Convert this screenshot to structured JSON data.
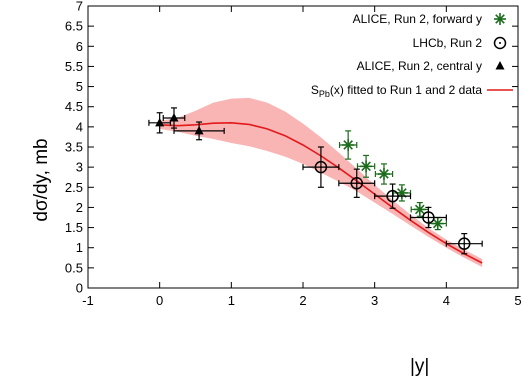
{
  "chart_data": {
    "type": "scatter",
    "xlabel": "|y|",
    "ylabel": "dσ/dy, mb",
    "xlim": [
      -1,
      5
    ],
    "ylim": [
      0,
      7
    ],
    "xticks": [
      "-1",
      "0",
      "1",
      "2",
      "3",
      "4",
      "5"
    ],
    "yticks": [
      "0",
      "0.5",
      "1",
      "1.5",
      "2",
      "2.5",
      "3",
      "3.5",
      "4",
      "4.5",
      "5",
      "5.5",
      "6",
      "6.5",
      "7"
    ],
    "legend_position": "top-right",
    "series": [
      {
        "name": "ALICE, Run 2, forward y",
        "marker": "asterisk",
        "color": "#1a6b1a",
        "points": [
          {
            "x": 2.63,
            "y": 3.55,
            "xerr": 0.12,
            "yerr": 0.35
          },
          {
            "x": 2.88,
            "y": 3.02,
            "xerr": 0.12,
            "yerr": 0.27
          },
          {
            "x": 3.13,
            "y": 2.83,
            "xerr": 0.12,
            "yerr": 0.25
          },
          {
            "x": 3.38,
            "y": 2.36,
            "xerr": 0.12,
            "yerr": 0.2
          },
          {
            "x": 3.63,
            "y": 1.95,
            "xerr": 0.12,
            "yerr": 0.17
          },
          {
            "x": 3.88,
            "y": 1.6,
            "xerr": 0.12,
            "yerr": 0.15
          }
        ]
      },
      {
        "name": "LHCb, Run 2",
        "marker": "open-circle",
        "color": "#000000",
        "points": [
          {
            "x": 2.25,
            "y": 3.0,
            "xerr": 0.25,
            "yerr": 0.5
          },
          {
            "x": 2.75,
            "y": 2.6,
            "xerr": 0.25,
            "yerr": 0.35
          },
          {
            "x": 3.25,
            "y": 2.28,
            "xerr": 0.25,
            "yerr": 0.3
          },
          {
            "x": 3.75,
            "y": 1.75,
            "xerr": 0.25,
            "yerr": 0.25
          },
          {
            "x": 4.25,
            "y": 1.1,
            "xerr": 0.25,
            "yerr": 0.25
          }
        ]
      },
      {
        "name": "ALICE, Run 2, central y",
        "marker": "filled-triangle",
        "color": "#000000",
        "points": [
          {
            "x": 0.0,
            "y": 4.1,
            "xerr": 0.15,
            "yerr": 0.25
          },
          {
            "x": 0.2,
            "y": 4.22,
            "xerr": 0.15,
            "yerr": 0.25
          },
          {
            "x": 0.55,
            "y": 3.9,
            "xerr": 0.35,
            "yerr": 0.22
          }
        ]
      }
    ],
    "fit": {
      "name_main": "S",
      "name_sub": "Pb",
      "name_tail": "(x) fitted to Run 1 and 2 data",
      "line_color": "#e31a1c",
      "band_color": "#f9b4b4",
      "x": [
        0.0,
        0.25,
        0.5,
        0.75,
        1.0,
        1.25,
        1.5,
        1.75,
        2.0,
        2.25,
        2.5,
        2.75,
        3.0,
        3.25,
        3.5,
        3.75,
        4.0,
        4.25,
        4.5
      ],
      "y": [
        4.05,
        4.03,
        4.05,
        4.09,
        4.1,
        4.06,
        3.95,
        3.78,
        3.55,
        3.28,
        2.98,
        2.66,
        2.33,
        2.0,
        1.68,
        1.38,
        1.1,
        0.85,
        0.62
      ],
      "upper": [
        4.15,
        4.22,
        4.4,
        4.6,
        4.7,
        4.72,
        4.6,
        4.38,
        4.08,
        3.74,
        3.36,
        2.96,
        2.56,
        2.18,
        1.82,
        1.49,
        1.2,
        0.95,
        0.72
      ],
      "lower": [
        3.95,
        3.88,
        3.78,
        3.7,
        3.6,
        3.52,
        3.4,
        3.26,
        3.08,
        2.86,
        2.64,
        2.4,
        2.12,
        1.84,
        1.55,
        1.27,
        1.0,
        0.75,
        0.52
      ]
    }
  }
}
